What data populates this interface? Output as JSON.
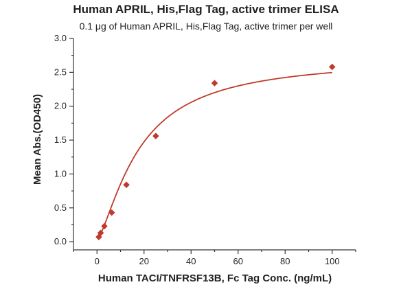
{
  "chart_data": {
    "type": "scatter",
    "title": "Human APRIL, His,Flag Tag, active trimer ELISA",
    "subtitle": "0.1 μg of Human APRIL, His,Flag Tag, active trimer per well",
    "xlabel": "Human TACI/TNFRSF13B, Fc Tag Conc. (ng/mL)",
    "ylabel": "Mean Abs.(OD450)",
    "xlim": [
      -10,
      110
    ],
    "ylim": [
      -0.12,
      3.0
    ],
    "xticks": [
      0,
      20,
      40,
      60,
      80,
      100
    ],
    "yticks": [
      0.0,
      0.5,
      1.0,
      1.5,
      2.0,
      2.5,
      3.0
    ],
    "xtick_labels": [
      "0",
      "20",
      "40",
      "60",
      "80",
      "100"
    ],
    "ytick_labels": [
      "0.0",
      "0.5",
      "1.0",
      "1.5",
      "2.0",
      "2.5",
      "3.0"
    ],
    "grid": false,
    "colors": {
      "series": "#c0392b",
      "axis": "#333333"
    },
    "series": [
      {
        "marker": "diamond",
        "x": [
          0.78,
          1.56,
          3.13,
          6.25,
          12.5,
          25,
          50,
          100
        ],
        "y": [
          0.07,
          0.13,
          0.23,
          0.43,
          0.84,
          1.56,
          2.34,
          2.58
        ]
      }
    ],
    "fit_curve": {
      "model": "4-parameter logistic",
      "min": 0.03,
      "max": 2.72,
      "ec50": 18.0,
      "hill": 1.4
    }
  }
}
